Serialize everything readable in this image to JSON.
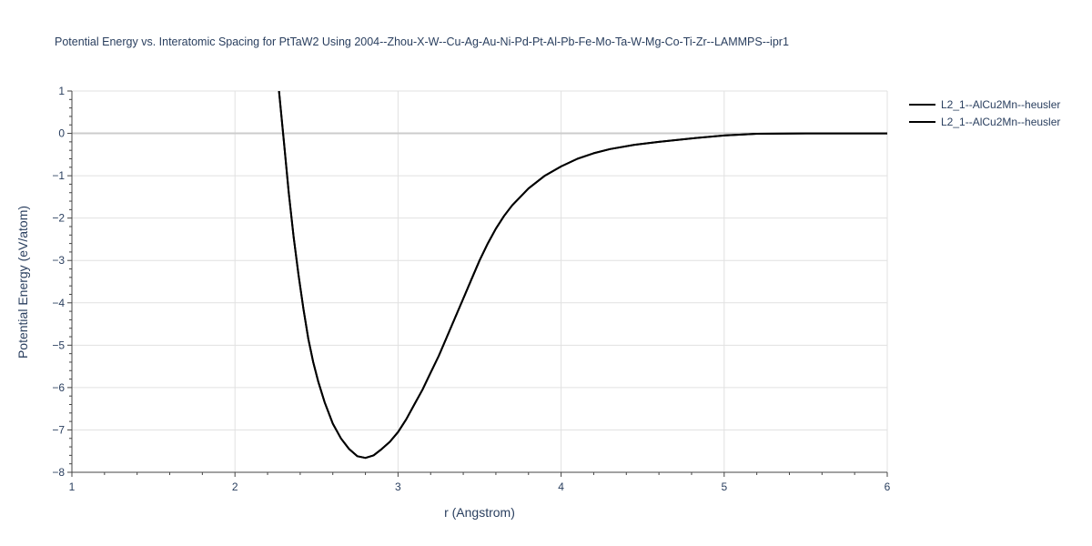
{
  "chart_data": {
    "type": "line",
    "title": "Potential Energy vs. Interatomic Spacing for PtTaW2 Using 2004--Zhou-X-W--Cu-Ag-Au-Ni-Pd-Pt-Al-Pb-Fe-Mo-Ta-W-Mg-Co-Ti-Zr--LAMMPS--ipr1",
    "xlabel": "r (Angstrom)",
    "ylabel": "Potential Energy (eV/atom)",
    "xlim": [
      1,
      6
    ],
    "ylim": [
      -8,
      1
    ],
    "xticks": [
      1,
      2,
      3,
      4,
      5,
      6
    ],
    "yticks": [
      1,
      0,
      -1,
      -2,
      -3,
      -4,
      -5,
      -6,
      -7,
      -8
    ],
    "grid": true,
    "legend": "top-right",
    "series": [
      {
        "name": "L2_1--AlCu2Mn--heusler",
        "color": "#000000",
        "x": [
          2.27,
          2.3,
          2.33,
          2.36,
          2.39,
          2.42,
          2.45,
          2.48,
          2.51,
          2.55,
          2.6,
          2.65,
          2.7,
          2.75,
          2.8,
          2.85,
          2.9,
          2.95,
          3.0,
          3.05,
          3.1,
          3.15,
          3.2,
          3.25,
          3.3,
          3.35,
          3.4,
          3.45,
          3.5,
          3.55,
          3.6,
          3.65,
          3.7,
          3.8,
          3.9,
          4.0,
          4.1,
          4.2,
          4.3,
          4.45,
          4.6,
          4.8,
          5.0,
          5.2,
          5.5,
          6.0
        ],
        "y": [
          1.0,
          -0.2,
          -1.4,
          -2.45,
          -3.35,
          -4.15,
          -4.85,
          -5.4,
          -5.85,
          -6.35,
          -6.85,
          -7.2,
          -7.45,
          -7.62,
          -7.66,
          -7.6,
          -7.45,
          -7.28,
          -7.05,
          -6.75,
          -6.4,
          -6.05,
          -5.65,
          -5.25,
          -4.8,
          -4.35,
          -3.9,
          -3.45,
          -3.0,
          -2.6,
          -2.25,
          -1.95,
          -1.7,
          -1.3,
          -1.0,
          -0.78,
          -0.6,
          -0.47,
          -0.37,
          -0.27,
          -0.2,
          -0.12,
          -0.05,
          -0.01,
          0.0,
          0.0
        ]
      },
      {
        "name": "L2_1--AlCu2Mn--heusler",
        "color": "#000000",
        "x": [
          2.27,
          2.3,
          2.33,
          2.36,
          2.39,
          2.42,
          2.45,
          2.48,
          2.51,
          2.55,
          2.6,
          2.65,
          2.7,
          2.75,
          2.8,
          2.85,
          2.9,
          2.95,
          3.0,
          3.05,
          3.1,
          3.15,
          3.2,
          3.25,
          3.3,
          3.35,
          3.4,
          3.45,
          3.5,
          3.55,
          3.6,
          3.65,
          3.7,
          3.8,
          3.9,
          4.0,
          4.1,
          4.2,
          4.3,
          4.45,
          4.6,
          4.8,
          5.0,
          5.2,
          5.5,
          6.0
        ],
        "y": [
          1.0,
          -0.2,
          -1.4,
          -2.45,
          -3.35,
          -4.15,
          -4.85,
          -5.4,
          -5.85,
          -6.35,
          -6.85,
          -7.2,
          -7.45,
          -7.62,
          -7.66,
          -7.6,
          -7.45,
          -7.28,
          -7.05,
          -6.75,
          -6.4,
          -6.05,
          -5.65,
          -5.25,
          -4.8,
          -4.35,
          -3.9,
          -3.45,
          -3.0,
          -2.6,
          -2.25,
          -1.95,
          -1.7,
          -1.3,
          -1.0,
          -0.78,
          -0.6,
          -0.47,
          -0.37,
          -0.27,
          -0.2,
          -0.12,
          -0.05,
          -0.01,
          0.0,
          0.0
        ]
      }
    ]
  }
}
